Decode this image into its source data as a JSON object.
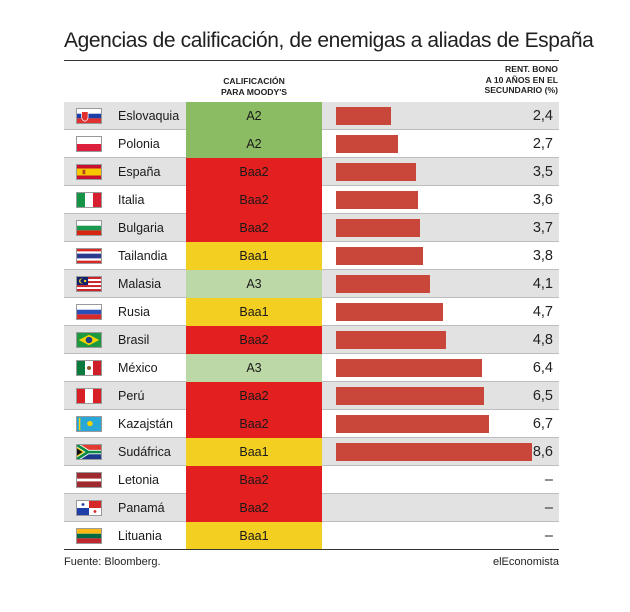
{
  "title": "Agencias de calificación, de enemigas a aliadas de España",
  "column_headers": {
    "rating_line1": "CALIFICACIÓN",
    "rating_line2": "PARA MOODY'S",
    "yield_line1": "RENT. BONO",
    "yield_line2": "A 10 AÑOS EN EL",
    "yield_line3": "SECUNDARIO (%)"
  },
  "footer": {
    "source": "Fuente: Bloomberg.",
    "credit": "elEconomista"
  },
  "colors": {
    "bar": "#c9463a",
    "rating_A2": "#8bbb62",
    "rating_A3": "#bcd8a6",
    "rating_Baa1": "#f3cf22",
    "rating_Baa2": "#e31f1f",
    "row_alt": "#e2e2e2",
    "missing_text": "#222222"
  },
  "chart_data": {
    "type": "bar",
    "title": "Agencias de calificación, de enemigas a aliadas de España",
    "ylabel": "RENT. BONO A 10 AÑOS EN EL SECUNDARIO (%)",
    "xlim": [
      0,
      9.2
    ],
    "categories": [
      "Eslovaquia",
      "Polonia",
      "España",
      "Italia",
      "Bulgaria",
      "Tailandia",
      "Malasia",
      "Rusia",
      "Brasil",
      "México",
      "Perú",
      "Kazajstán",
      "Sudáfrica",
      "Letonia",
      "Panamá",
      "Lituania"
    ],
    "ratings": [
      "A2",
      "A2",
      "Baa2",
      "Baa2",
      "Baa2",
      "Baa1",
      "A3",
      "Baa1",
      "Baa2",
      "A3",
      "Baa2",
      "Baa2",
      "Baa1",
      "Baa2",
      "Baa2",
      "Baa1"
    ],
    "values": [
      2.4,
      2.7,
      3.5,
      3.6,
      3.7,
      3.8,
      4.1,
      4.7,
      4.8,
      6.4,
      6.5,
      6.7,
      8.6,
      null,
      null,
      null
    ],
    "value_labels": [
      "2,4",
      "2,7",
      "3,5",
      "3,6",
      "3,7",
      "3,8",
      "4,1",
      "4,7",
      "4,8",
      "6,4",
      "6,5",
      "6,7",
      "8,6",
      "–",
      "–",
      "–"
    ],
    "flag_icons": [
      "slovakia-flag-icon",
      "poland-flag-icon",
      "spain-flag-icon",
      "italy-flag-icon",
      "bulgaria-flag-icon",
      "thailand-flag-icon",
      "malaysia-flag-icon",
      "russia-flag-icon",
      "brazil-flag-icon",
      "mexico-flag-icon",
      "peru-flag-icon",
      "kazakhstan-flag-icon",
      "south-africa-flag-icon",
      "latvia-flag-icon",
      "panama-flag-icon",
      "lithuania-flag-icon"
    ]
  }
}
